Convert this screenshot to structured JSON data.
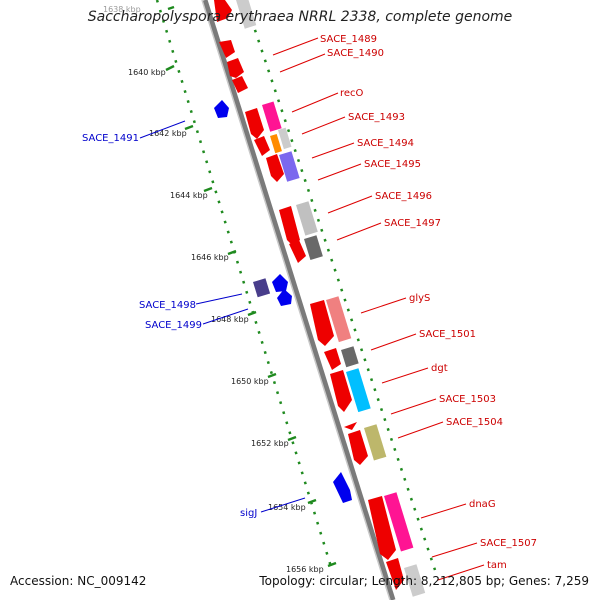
{
  "title": "Saccharopolyspora erythraea NRRL 2338, complete genome",
  "footer": {
    "accession": "Accession: NC_009142",
    "summary": "Topology: circular; Length: 8,212,805 bp; Genes: 7,259"
  },
  "colors": {
    "backbone": "#8a8a8a",
    "tick_dots": "#1f8a1f",
    "forward_label": "#cc0000",
    "reverse_label": "#0000cc",
    "leader_line": "#dd0000",
    "reverse_leader": "#0000cc"
  },
  "ruler": {
    "ticks": [
      "1638 kbp",
      "1640 kbp",
      "1642 kbp",
      "1644 kbp",
      "1646 kbp",
      "1648 kbp",
      "1650 kbp",
      "1652 kbp",
      "1654 kbp",
      "1656 kbp"
    ]
  },
  "labels": {
    "forward": [
      "SACE_1489",
      "SACE_1490",
      "recO",
      "SACE_1493",
      "SACE_1494",
      "SACE_1495",
      "SACE_1496",
      "SACE_1497",
      "glyS",
      "SACE_1501",
      "dgt",
      "SACE_1503",
      "SACE_1504",
      "dnaG",
      "SACE_1507",
      "tam"
    ],
    "reverse": [
      "SACE_1491",
      "SACE_1498",
      "SACE_1499",
      "sigJ"
    ]
  }
}
